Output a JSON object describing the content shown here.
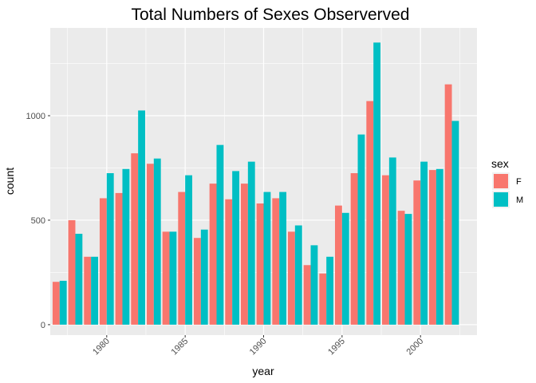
{
  "chart_data": {
    "type": "bar",
    "title": "Total Numbers of Sexes Observerved",
    "xlabel": "year",
    "ylabel": "count",
    "ylim": [
      -50,
      1420
    ],
    "yticks": [
      0,
      500,
      1000
    ],
    "xlim": [
      1976.4,
      2003.6
    ],
    "xticks": [
      1980,
      1985,
      1990,
      1995,
      2000
    ],
    "grid": true,
    "legend": {
      "title": "sex",
      "position": "right"
    },
    "x": [
      1977,
      1978,
      1979,
      1980,
      1981,
      1982,
      1983,
      1984,
      1985,
      1986,
      1987,
      1988,
      1989,
      1990,
      1991,
      1992,
      1993,
      1994,
      1995,
      1996,
      1997,
      1998,
      1999,
      2000,
      2001,
      2002
    ],
    "series": [
      {
        "name": "F",
        "color": "#F8766D",
        "values": [
          205,
          500,
          325,
          605,
          630,
          820,
          770,
          445,
          635,
          415,
          675,
          600,
          675,
          580,
          605,
          445,
          285,
          245,
          570,
          725,
          1070,
          715,
          545,
          690,
          740,
          1150
        ]
      },
      {
        "name": "M",
        "color": "#00BFC4",
        "values": [
          210,
          435,
          325,
          725,
          745,
          1025,
          795,
          445,
          715,
          455,
          860,
          735,
          780,
          635,
          635,
          475,
          380,
          325,
          535,
          910,
          1350,
          800,
          530,
          780,
          745,
          975
        ]
      }
    ]
  }
}
